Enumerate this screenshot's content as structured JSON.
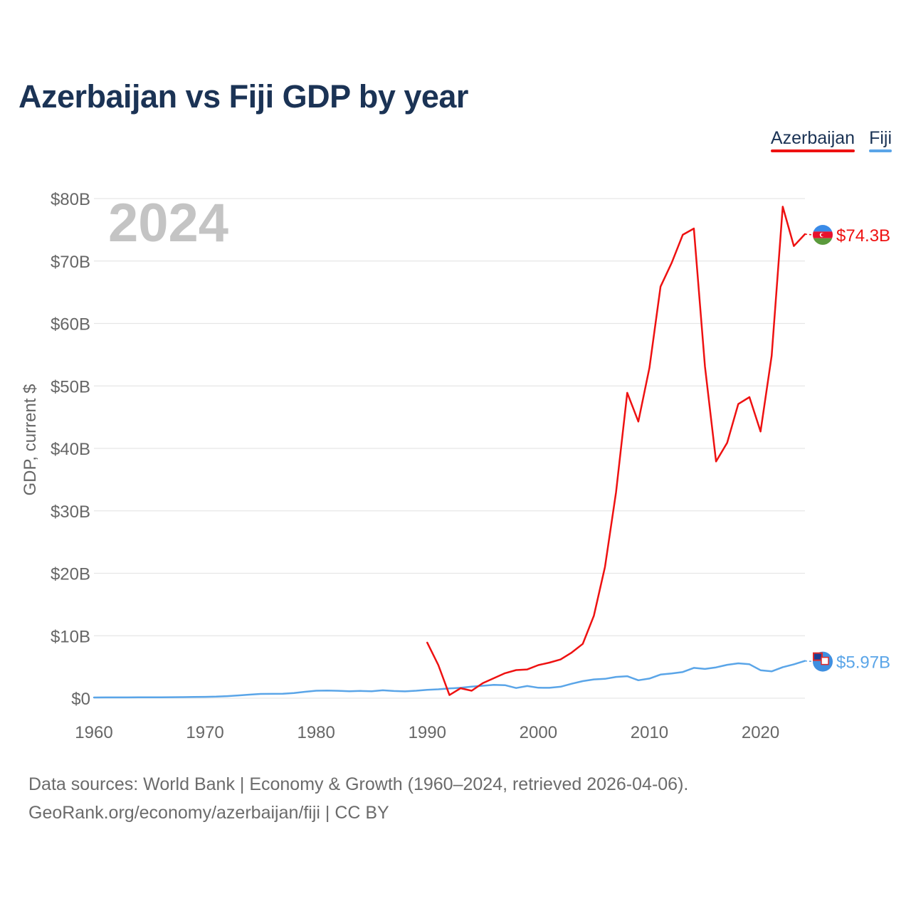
{
  "title": "Azerbaijan vs Fiji GDP by year",
  "legend": [
    {
      "label": "Azerbaijan",
      "color": "#ee1111"
    },
    {
      "label": "Fiji",
      "color": "#5aa5e8"
    }
  ],
  "year_label": "2024",
  "footer": {
    "line1": "Data sources: World Bank | Economy & Growth (1960–2024, retrieved 2026-04-06).",
    "line2": "GeoRank.org/economy/azerbaijan/fiji | CC BY"
  },
  "chart_data": {
    "type": "line",
    "title": "Azerbaijan vs Fiji GDP by year",
    "xlabel": "",
    "ylabel": "GDP, current $",
    "xlim": [
      1960,
      2024
    ],
    "ylim": [
      0,
      80
    ],
    "y_unit": "billions USD",
    "x_ticks": [
      1960,
      1970,
      1980,
      1990,
      2000,
      2010,
      2020
    ],
    "y_ticks": [
      {
        "value": 0,
        "label": "$0"
      },
      {
        "value": 10,
        "label": "$10B"
      },
      {
        "value": 20,
        "label": "$20B"
      },
      {
        "value": 30,
        "label": "$30B"
      },
      {
        "value": 40,
        "label": "$40B"
      },
      {
        "value": 50,
        "label": "$50B"
      },
      {
        "value": 60,
        "label": "$60B"
      },
      {
        "value": 70,
        "label": "$70B"
      },
      {
        "value": 80,
        "label": "$80B"
      }
    ],
    "grid": true,
    "legend_position": "top-right",
    "series": [
      {
        "name": "Azerbaijan",
        "color": "#ee1111",
        "end_label": "$74.3B",
        "x": [
          1990,
          1991,
          1992,
          1993,
          1994,
          1995,
          1996,
          1997,
          1998,
          1999,
          2000,
          2001,
          2002,
          2003,
          2004,
          2005,
          2006,
          2007,
          2008,
          2009,
          2010,
          2011,
          2012,
          2013,
          2014,
          2015,
          2016,
          2017,
          2018,
          2019,
          2020,
          2021,
          2022,
          2023,
          2024
        ],
        "y": [
          8.9,
          5.3,
          0.5,
          1.6,
          1.2,
          2.4,
          3.2,
          4.0,
          4.5,
          4.6,
          5.3,
          5.7,
          6.2,
          7.3,
          8.7,
          13.2,
          21.0,
          33.0,
          48.9,
          44.3,
          52.9,
          65.9,
          69.7,
          74.2,
          75.2,
          53.1,
          37.9,
          40.9,
          47.1,
          48.2,
          42.7,
          54.8,
          78.7,
          72.4,
          74.3
        ]
      },
      {
        "name": "Fiji",
        "color": "#5aa5e8",
        "end_label": "$5.97B",
        "x": [
          1960,
          1961,
          1962,
          1963,
          1964,
          1965,
          1966,
          1967,
          1968,
          1969,
          1970,
          1971,
          1972,
          1973,
          1974,
          1975,
          1976,
          1977,
          1978,
          1979,
          1980,
          1981,
          1982,
          1983,
          1984,
          1985,
          1986,
          1987,
          1988,
          1989,
          1990,
          1991,
          1992,
          1993,
          1994,
          1995,
          1996,
          1997,
          1998,
          1999,
          2000,
          2001,
          2002,
          2003,
          2004,
          2005,
          2006,
          2007,
          2008,
          2009,
          2010,
          2011,
          2012,
          2013,
          2014,
          2015,
          2016,
          2017,
          2018,
          2019,
          2020,
          2021,
          2022,
          2023,
          2024
        ],
        "y": [
          0.11,
          0.12,
          0.12,
          0.13,
          0.14,
          0.15,
          0.15,
          0.16,
          0.17,
          0.19,
          0.22,
          0.25,
          0.33,
          0.44,
          0.57,
          0.68,
          0.69,
          0.72,
          0.83,
          1.03,
          1.2,
          1.22,
          1.18,
          1.1,
          1.16,
          1.1,
          1.26,
          1.15,
          1.09,
          1.2,
          1.35,
          1.42,
          1.56,
          1.66,
          1.85,
          2.0,
          2.13,
          2.08,
          1.63,
          1.95,
          1.68,
          1.66,
          1.84,
          2.31,
          2.73,
          3.01,
          3.1,
          3.41,
          3.52,
          2.87,
          3.14,
          3.78,
          3.97,
          4.19,
          4.86,
          4.68,
          4.93,
          5.35,
          5.58,
          5.44,
          4.48,
          4.3,
          4.97,
          5.42,
          5.97
        ]
      }
    ]
  }
}
